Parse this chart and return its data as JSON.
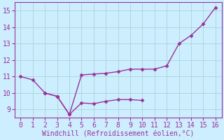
{
  "line1_x": [
    0,
    1,
    2,
    3,
    4,
    5,
    6,
    7,
    8,
    9,
    10,
    11,
    12,
    13,
    14,
    15,
    16
  ],
  "line1_y": [
    11.0,
    10.8,
    10.0,
    9.8,
    8.7,
    11.1,
    11.15,
    11.2,
    11.3,
    11.45,
    11.45,
    11.45,
    11.65,
    13.0,
    13.5,
    14.2,
    15.2
  ],
  "line2_x": [
    2,
    3,
    4,
    5,
    6,
    7,
    8,
    9,
    10
  ],
  "line2_y": [
    10.0,
    9.8,
    8.7,
    9.4,
    9.35,
    9.5,
    9.6,
    9.6,
    9.55
  ],
  "line_color": "#993399",
  "marker": "D",
  "markersize": 2.5,
  "markeredgewidth": 0.5,
  "linewidth": 1.0,
  "xlabel": "Windchill (Refroidissement éolien,°C)",
  "xlim": [
    -0.5,
    16.5
  ],
  "ylim": [
    8.5,
    15.5
  ],
  "xticks": [
    0,
    1,
    2,
    3,
    4,
    5,
    6,
    7,
    8,
    9,
    10,
    11,
    12,
    13,
    14,
    15,
    16
  ],
  "yticks": [
    9,
    10,
    11,
    12,
    13,
    14,
    15
  ],
  "bg_color": "#cceeff",
  "grid_color": "#aad4d4",
  "line_color_spine": "#993399",
  "xlabel_color": "#993399",
  "tick_color": "#993399",
  "tick_labelsize": 7,
  "xlabel_fontsize": 7
}
